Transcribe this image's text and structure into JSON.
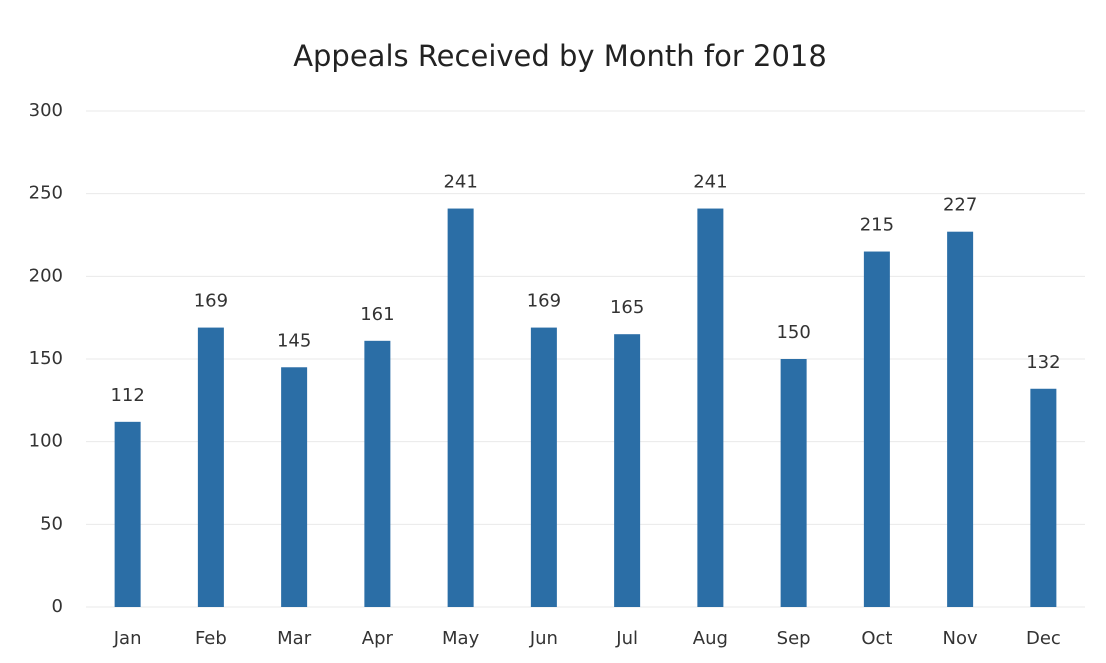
{
  "chart_data": {
    "type": "bar",
    "title": "Appeals Received by Month for 2018",
    "categories": [
      "Jan",
      "Feb",
      "Mar",
      "Apr",
      "May",
      "Jun",
      "Jul",
      "Aug",
      "Sep",
      "Oct",
      "Nov",
      "Dec"
    ],
    "values": [
      112,
      169,
      145,
      161,
      241,
      169,
      165,
      241,
      150,
      215,
      227,
      132
    ],
    "color": "#2b6ea6",
    "ylim": [
      0,
      300
    ],
    "yticks": [
      0,
      50,
      100,
      150,
      200,
      250,
      300
    ],
    "grid": true
  }
}
